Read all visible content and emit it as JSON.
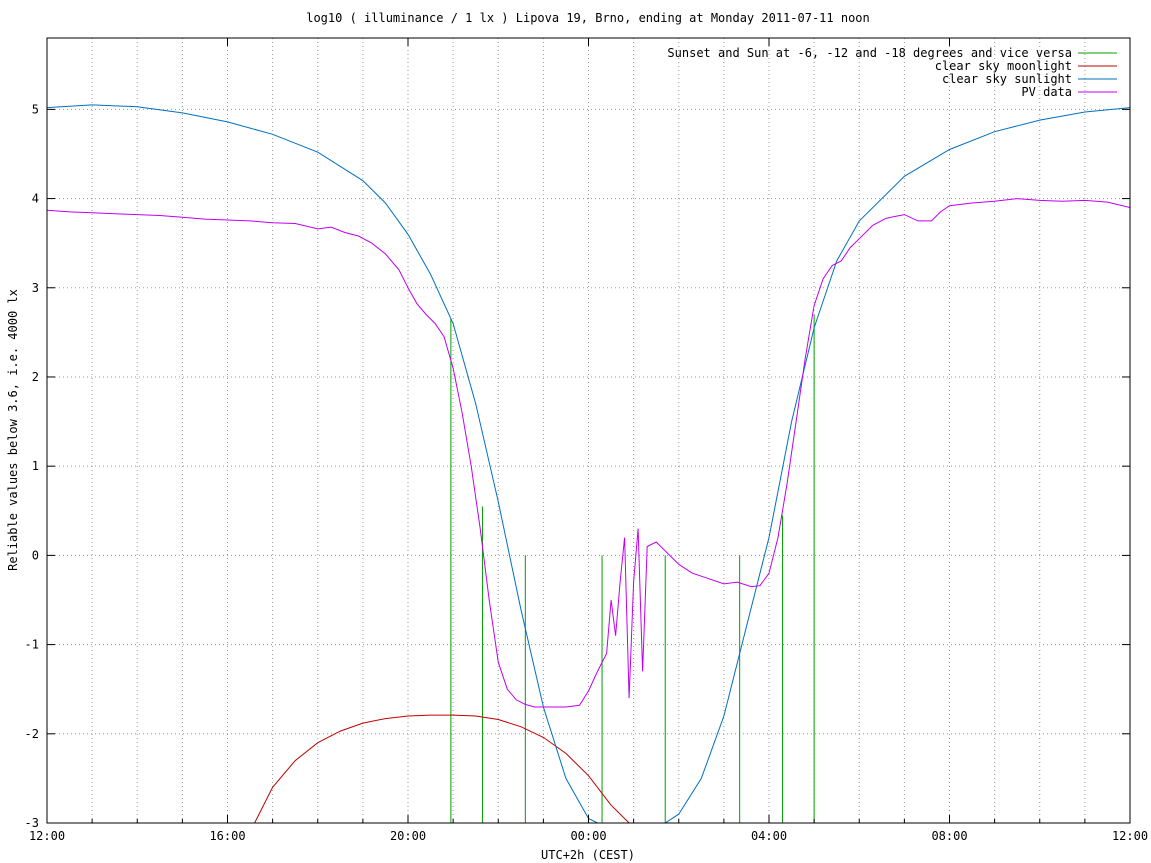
{
  "chart_data": {
    "type": "line",
    "title": "log10 ( illuminance / 1 lx ) Lipova 19, Brno, ending at Monday 2011-07-11 noon",
    "xlabel": "UTC+2h (CEST)",
    "ylabel": "Reliable values below 3.6, i.e. 4000 lx",
    "x_unit": "hours since Sunday 2011-07-10 12:00 (CEST)",
    "xlim": [
      0,
      24
    ],
    "ylim": [
      -3,
      5.8
    ],
    "x_ticks": [
      {
        "value": 0,
        "label": "12:00"
      },
      {
        "value": 4,
        "label": "16:00"
      },
      {
        "value": 8,
        "label": "20:00"
      },
      {
        "value": 12,
        "label": "00:00"
      },
      {
        "value": 16,
        "label": "04:00"
      },
      {
        "value": 20,
        "label": "08:00"
      },
      {
        "value": 24,
        "label": "12:00"
      }
    ],
    "y_ticks": [
      {
        "value": -3,
        "label": "-3"
      },
      {
        "value": -2,
        "label": "-2"
      },
      {
        "value": -1,
        "label": "-1"
      },
      {
        "value": 0,
        "label": "0"
      },
      {
        "value": 1,
        "label": "1"
      },
      {
        "value": 2,
        "label": "2"
      },
      {
        "value": 3,
        "label": "3"
      },
      {
        "value": 4,
        "label": "4"
      },
      {
        "value": 5,
        "label": "5"
      }
    ],
    "grid": true,
    "grid_x_step": 1,
    "legend_position": "top-right",
    "series": [
      {
        "name": "Sunset and Sun at -6, -12 and -18 degrees and vice versa",
        "color": "#00a000",
        "kind": "vertical-markers",
        "markers": [
          {
            "x": 8.95,
            "y_top": 2.65
          },
          {
            "x": 9.65,
            "y_top": 0.55
          },
          {
            "x": 10.6,
            "y_top": 0.0
          },
          {
            "x": 12.3,
            "y_top": 0.0
          },
          {
            "x": 13.7,
            "y_top": 0.0
          },
          {
            "x": 15.35,
            "y_top": 0.0
          },
          {
            "x": 16.3,
            "y_top": 0.45
          },
          {
            "x": 17.0,
            "y_top": 2.7
          }
        ]
      },
      {
        "name": "clear sky moonlight",
        "color": "#c00000",
        "x": [
          4.6,
          5.0,
          5.5,
          6.0,
          6.5,
          7.0,
          7.5,
          8.0,
          8.5,
          9.0,
          9.5,
          10.0,
          10.5,
          11.0,
          11.5,
          12.0,
          12.5,
          12.9
        ],
        "y": [
          -3.0,
          -2.6,
          -2.3,
          -2.1,
          -1.97,
          -1.88,
          -1.83,
          -1.8,
          -1.79,
          -1.79,
          -1.8,
          -1.84,
          -1.92,
          -2.04,
          -2.22,
          -2.47,
          -2.8,
          -3.0
        ]
      },
      {
        "name": "clear sky sunlight",
        "color": "#0070c0",
        "x": [
          0,
          1,
          2,
          3,
          4,
          5,
          6,
          7,
          7.5,
          8,
          8.5,
          9,
          9.5,
          10,
          10.5,
          11,
          11.5,
          12.0,
          12.2,
          13.7,
          14.0,
          14.5,
          15.0,
          15.5,
          16.0,
          16.5,
          17.0,
          17.5,
          18,
          19,
          20,
          21,
          22,
          23,
          24
        ],
        "y": [
          5.02,
          5.05,
          5.03,
          4.96,
          4.86,
          4.72,
          4.52,
          4.2,
          3.95,
          3.6,
          3.15,
          2.6,
          1.7,
          0.6,
          -0.6,
          -1.7,
          -2.5,
          -2.95,
          -3.0,
          -3.0,
          -2.9,
          -2.5,
          -1.8,
          -0.8,
          0.2,
          1.5,
          2.55,
          3.3,
          3.75,
          4.25,
          4.55,
          4.75,
          4.88,
          4.97,
          5.02
        ]
      },
      {
        "name": "PV data",
        "color": "#c000f0",
        "x": [
          0,
          0.5,
          1,
          1.5,
          2,
          2.5,
          3,
          3.5,
          4,
          4.5,
          5,
          5.5,
          6,
          6.3,
          6.6,
          6.9,
          7.2,
          7.5,
          7.8,
          8.0,
          8.2,
          8.4,
          8.6,
          8.8,
          9.0,
          9.2,
          9.4,
          9.6,
          9.8,
          10.0,
          10.2,
          10.4,
          10.6,
          10.8,
          11.0,
          11.2,
          11.5,
          11.8,
          12.0,
          12.2,
          12.4,
          12.5,
          12.6,
          12.7,
          12.8,
          12.9,
          13.0,
          13.1,
          13.2,
          13.3,
          13.5,
          13.8,
          14.0,
          14.3,
          14.6,
          15.0,
          15.3,
          15.6,
          15.8,
          16.0,
          16.2,
          16.4,
          16.6,
          16.8,
          17.0,
          17.2,
          17.4,
          17.6,
          17.8,
          18.0,
          18.3,
          18.6,
          18.8,
          19.0,
          19.3,
          19.6,
          19.8,
          20.0,
          20.5,
          21.0,
          21.5,
          22.0,
          22.5,
          23.0,
          23.5,
          24.0
        ],
        "y": [
          3.87,
          3.85,
          3.84,
          3.83,
          3.82,
          3.81,
          3.79,
          3.77,
          3.76,
          3.75,
          3.73,
          3.72,
          3.66,
          3.68,
          3.62,
          3.58,
          3.5,
          3.38,
          3.2,
          3.0,
          2.82,
          2.7,
          2.6,
          2.45,
          2.1,
          1.6,
          1.0,
          0.3,
          -0.5,
          -1.2,
          -1.5,
          -1.62,
          -1.67,
          -1.7,
          -1.7,
          -1.7,
          -1.7,
          -1.68,
          -1.52,
          -1.3,
          -1.1,
          -0.5,
          -0.9,
          -0.3,
          0.2,
          -1.6,
          -0.3,
          0.3,
          -1.3,
          0.1,
          0.15,
          0.0,
          -0.1,
          -0.2,
          -0.25,
          -0.32,
          -0.3,
          -0.35,
          -0.34,
          -0.2,
          0.2,
          0.8,
          1.5,
          2.2,
          2.8,
          3.1,
          3.25,
          3.3,
          3.45,
          3.55,
          3.7,
          3.78,
          3.8,
          3.82,
          3.75,
          3.75,
          3.85,
          3.92,
          3.95,
          3.97,
          4.0,
          3.98,
          3.97,
          3.98,
          3.96,
          3.9
        ]
      }
    ]
  }
}
